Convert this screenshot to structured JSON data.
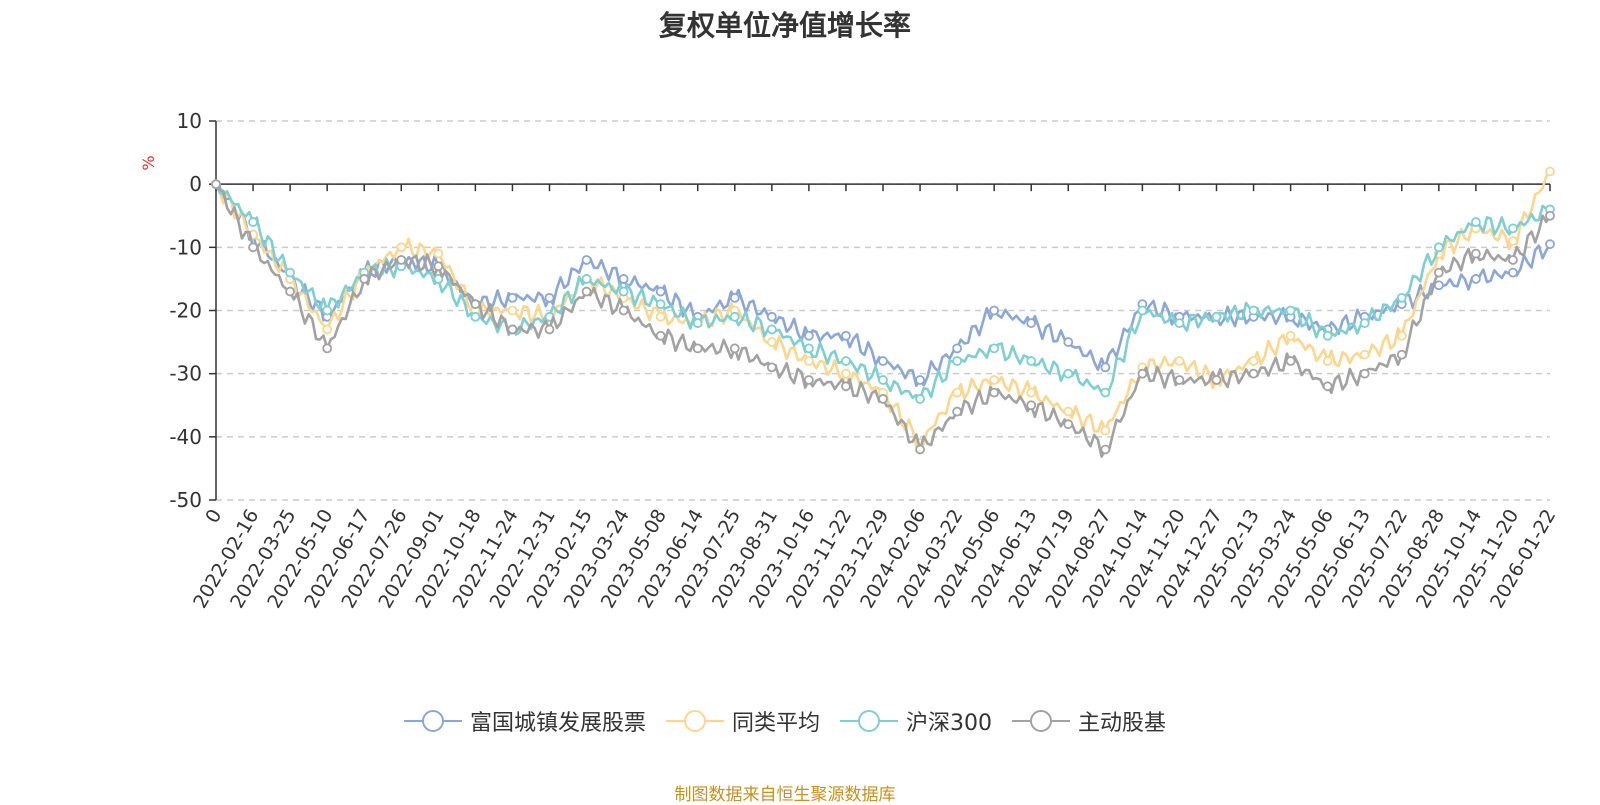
{
  "chart_data": {
    "type": "line",
    "title": "复权单位净值增长率",
    "ylabel": "%",
    "ylim": [
      -50,
      10
    ],
    "yticks": [
      10,
      0,
      -10,
      -20,
      -30,
      -40,
      -50
    ],
    "x_tick_labels": [
      "0",
      "2022-02-16",
      "2022-03-25",
      "2022-05-10",
      "2022-06-17",
      "2022-07-26",
      "2022-09-01",
      "2022-10-18",
      "2022-11-24",
      "2022-12-31",
      "2023-02-15",
      "2023-03-24",
      "2023-05-08",
      "2023-06-14",
      "2023-07-25",
      "2023-08-31",
      "2023-10-16",
      "2023-11-22",
      "2023-12-29",
      "2024-02-06",
      "2024-03-22",
      "2024-05-06",
      "2024-06-13",
      "2024-07-19",
      "2024-08-27",
      "2024-10-14",
      "2024-11-20",
      "2024-12-27",
      "2025-02-13",
      "2025-03-24",
      "2025-05-06",
      "2025-06-13",
      "2025-07-22",
      "2025-08-28",
      "2025-10-14",
      "2025-11-20",
      "2026-01-22"
    ],
    "x": [
      "0",
      "2022-02-16",
      "2022-03-25",
      "2022-05-10",
      "2022-06-17",
      "2022-07-26",
      "2022-09-01",
      "2022-10-18",
      "2022-11-24",
      "2022-12-31",
      "2023-02-15",
      "2023-03-24",
      "2023-05-08",
      "2023-06-14",
      "2023-07-25",
      "2023-08-31",
      "2023-10-16",
      "2023-11-22",
      "2023-12-29",
      "2024-02-06",
      "2024-03-22",
      "2024-05-06",
      "2024-06-13",
      "2024-07-19",
      "2024-08-27",
      "2024-10-14",
      "2024-11-20",
      "2024-12-27",
      "2025-02-13",
      "2025-03-24",
      "2025-05-06",
      "2025-06-13",
      "2025-07-22",
      "2025-08-28",
      "2025-10-14",
      "2025-11-20",
      "2026-01-22"
    ],
    "series": [
      {
        "name": "富国城镇发展股票",
        "color": "#8ba7d8",
        "values": [
          0,
          -8,
          -15,
          -21,
          -14,
          -12,
          -13,
          -19,
          -18,
          -18,
          -12,
          -15,
          -17,
          -21,
          -18,
          -21,
          -24,
          -24,
          -28,
          -31,
          -26,
          -20,
          -22,
          -25,
          -29,
          -19,
          -21,
          -21,
          -21,
          -21,
          -23,
          -21,
          -19,
          -16,
          -15,
          -14,
          -9.5
        ]
      },
      {
        "name": "同类平均",
        "color": "#fcd68d",
        "values": [
          0,
          -8,
          -15,
          -23,
          -14,
          -10,
          -11,
          -20,
          -20,
          -21,
          -15,
          -18,
          -21,
          -22,
          -20,
          -25,
          -28,
          -30,
          -33,
          -41,
          -33,
          -31,
          -33,
          -36,
          -39,
          -29,
          -28,
          -31,
          -28,
          -24,
          -28,
          -27,
          -24,
          -11,
          -7,
          -9,
          2
        ]
      },
      {
        "name": "沪深300",
        "color": "#7ecfd2",
        "values": [
          0,
          -6,
          -14,
          -20,
          -14,
          -13,
          -15,
          -21,
          -23,
          -21,
          -15,
          -17,
          -19,
          -22,
          -21,
          -23,
          -26,
          -28,
          -31,
          -34,
          -28,
          -26,
          -28,
          -30,
          -33,
          -20,
          -22,
          -21,
          -20,
          -20,
          -24,
          -22,
          -18,
          -10,
          -6,
          -7,
          -4
        ]
      },
      {
        "name": "主动股基",
        "color": "#a2a2a2",
        "values": [
          0,
          -10,
          -17,
          -26,
          -15,
          -12,
          -13,
          -19,
          -23,
          -23,
          -17,
          -20,
          -24,
          -26,
          -26,
          -29,
          -31,
          -32,
          -34,
          -42,
          -36,
          -33,
          -35,
          -38,
          -42,
          -30,
          -31,
          -31,
          -30,
          -28,
          -32,
          -30,
          -27,
          -14,
          -11,
          -12,
          -5
        ]
      }
    ]
  },
  "source_note": "制图数据来自恒生聚源数据库"
}
